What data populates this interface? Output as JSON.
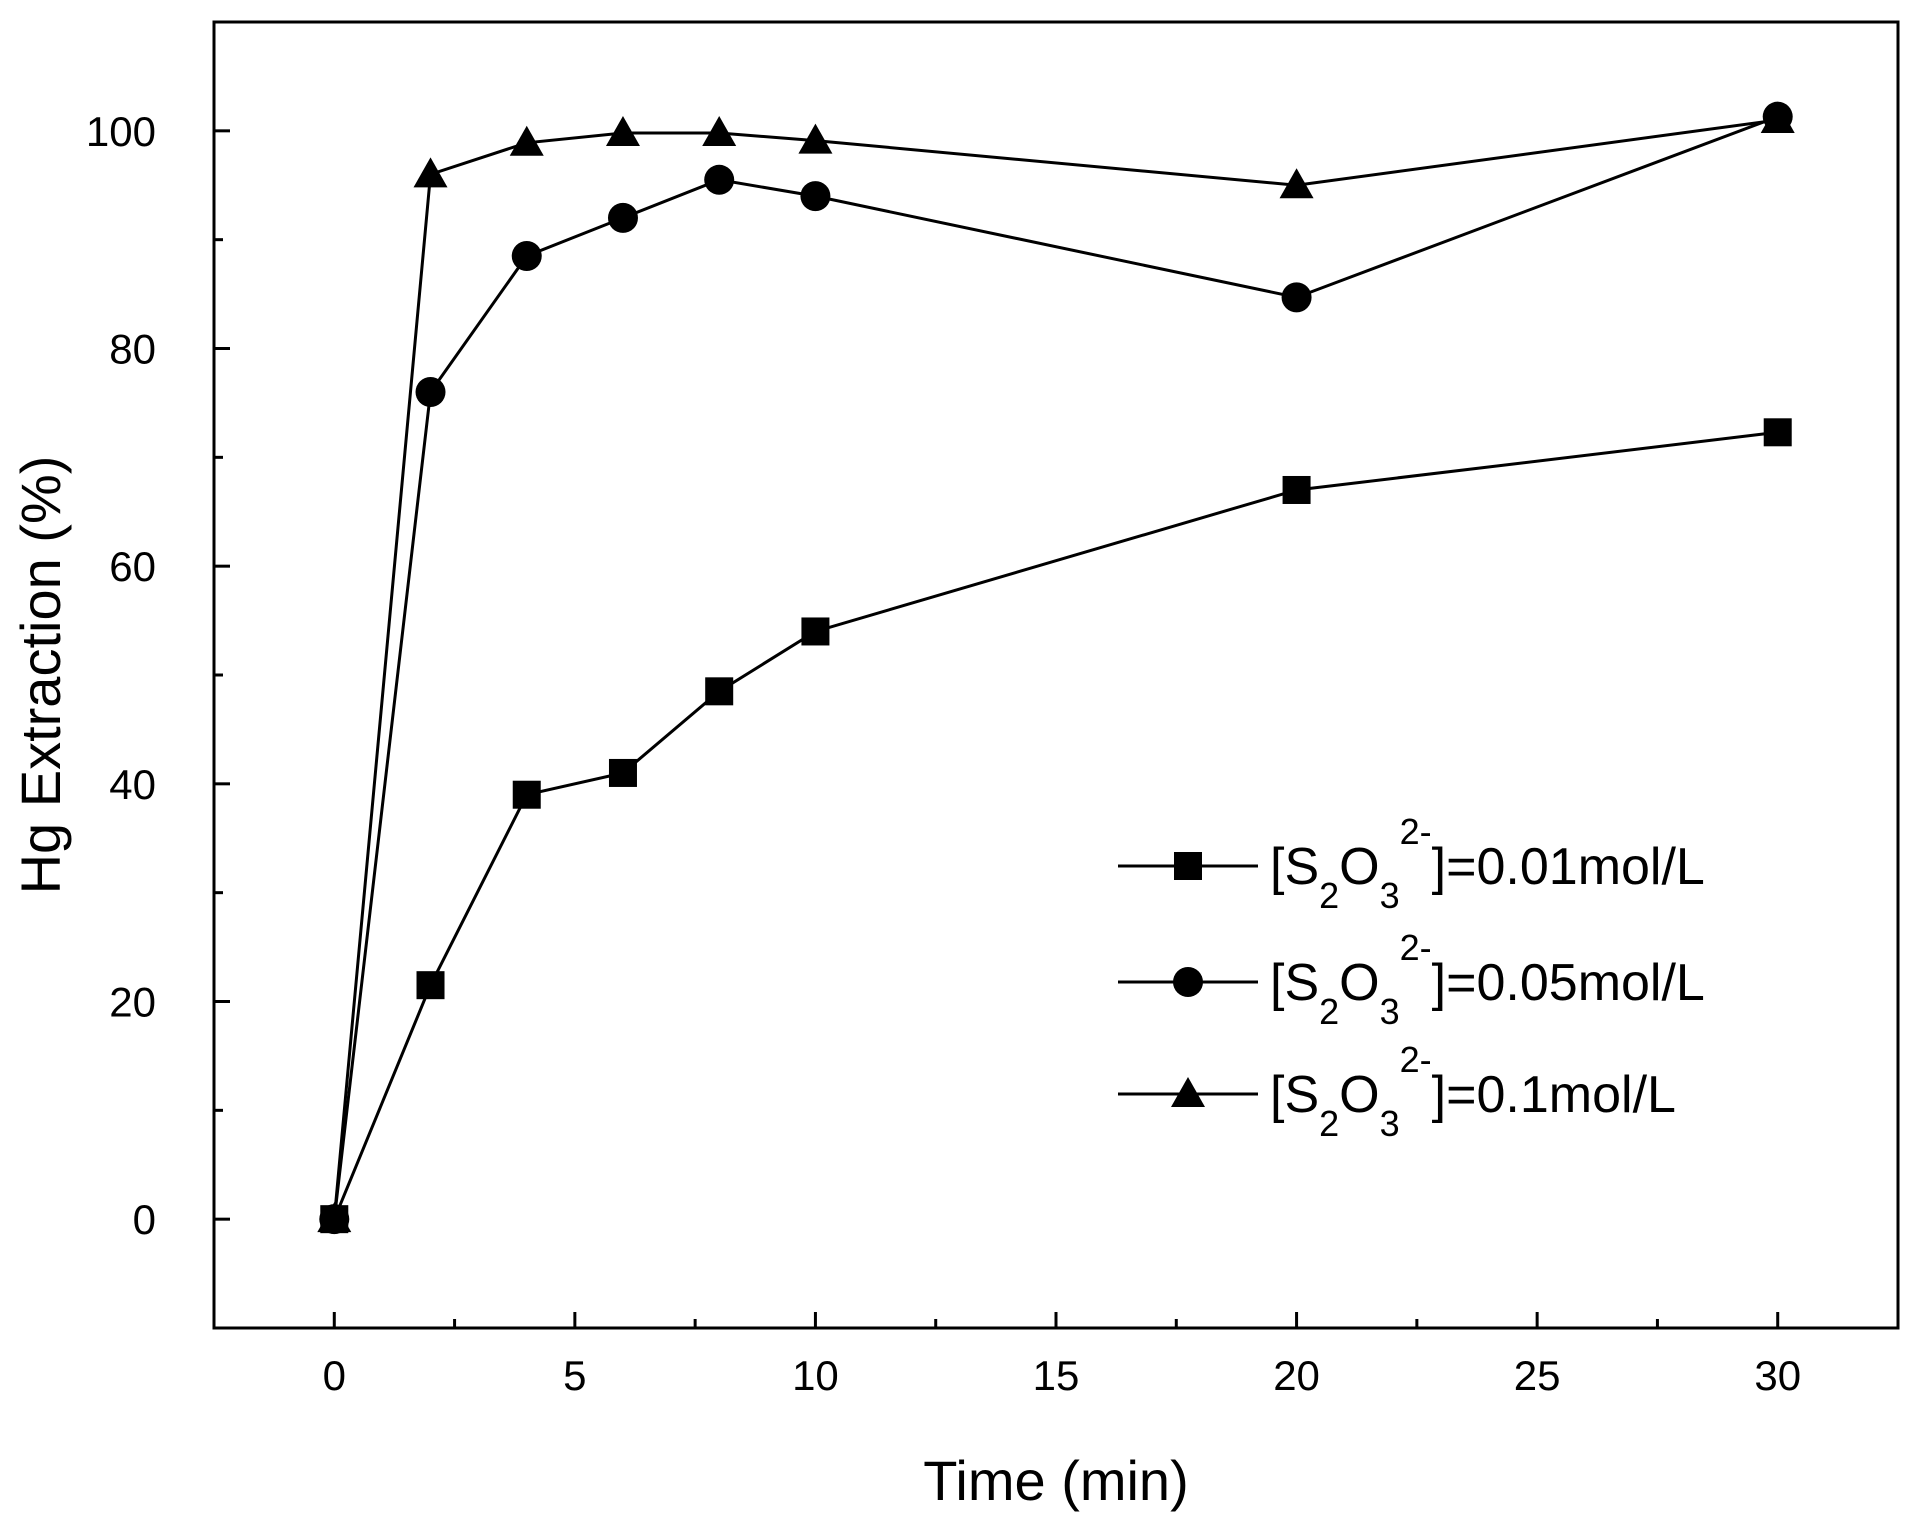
{
  "chart_data": {
    "type": "line",
    "title": "",
    "xlabel": "Time (min)",
    "ylabel": "Hg Extraction (%)",
    "xlim": [
      -2.5,
      32.5
    ],
    "ylim": [
      -10,
      110
    ],
    "x_ticks": [
      0,
      5,
      10,
      15,
      20,
      25,
      30
    ],
    "x_tick_labels": [
      "0",
      "5",
      "10",
      "15",
      "20",
      "25",
      "30"
    ],
    "y_ticks": [
      0,
      20,
      40,
      60,
      80,
      100
    ],
    "y_tick_labels": [
      "0",
      "20",
      "40",
      "60",
      "80",
      "100"
    ],
    "grid": false,
    "legend_position": "bottom-right",
    "series": [
      {
        "name": "[S2O3 2-]=0.01mol/L",
        "marker": "square",
        "x": [
          0,
          2,
          4,
          6,
          8,
          10,
          20,
          30
        ],
        "y": [
          0,
          21.5,
          39,
          41,
          48.5,
          54,
          67,
          72.3
        ]
      },
      {
        "name": "[S2O3 2-]=0.05mol/L",
        "marker": "circle",
        "x": [
          0,
          2,
          4,
          6,
          8,
          10,
          20,
          30
        ],
        "y": [
          0,
          76,
          88.5,
          92,
          95.5,
          94,
          84.7,
          101.3
        ]
      },
      {
        "name": "[S2O3 2-]=0.1mol/L",
        "marker": "triangle",
        "x": [
          0,
          2,
          4,
          6,
          8,
          10,
          20,
          30
        ],
        "y": [
          0,
          96,
          98.9,
          99.8,
          99.8,
          99.1,
          95,
          101
        ]
      }
    ],
    "legend": [
      {
        "prefix": "[S",
        "sub1": "2",
        "mid": "O",
        "sub2": "3",
        "sup": "2-",
        "suffix": "]=0.01mol/L"
      },
      {
        "prefix": "[S",
        "sub1": "2",
        "mid": "O",
        "sub2": "3",
        "sup": "2-",
        "suffix": "]=0.05mol/L"
      },
      {
        "prefix": "[S",
        "sub1": "2",
        "mid": "O",
        "sub2": "3",
        "sup": "2-",
        "suffix": "]=0.1mol/L"
      }
    ]
  }
}
